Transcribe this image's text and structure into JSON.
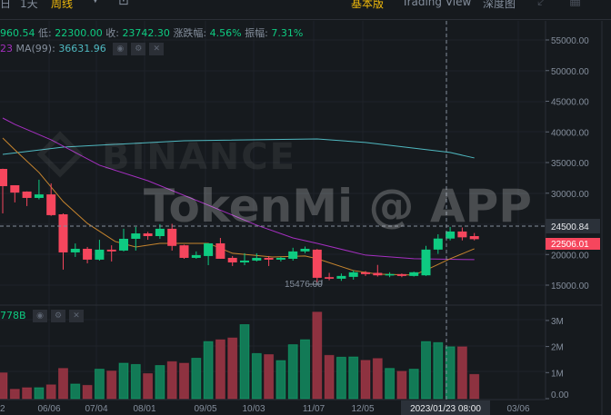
{
  "toolbar": {
    "interval_partial": "日",
    "interval_1d": "1天",
    "interval_week": "周线",
    "dropdown_icon": "caret-down-icon",
    "chart_icon": "chart-type-icon",
    "view_basic": "基本版",
    "view_tradingview": "Trading View",
    "view_depth": "深度图",
    "expand_icon": "expand-icon",
    "layout_icon": "grid-icon"
  },
  "legend": {
    "high_partial": "960.54",
    "low_label": "低:",
    "low": "22300.00",
    "close_label": "收:",
    "close": "23742.30",
    "change_label": "涨跌幅:",
    "change": "4.56%",
    "amp_label": "振幅:",
    "amp": "7.31%",
    "ma25_partial": "23",
    "ma99_label": "MA(99):",
    "ma99": "36631.96",
    "vol_partial": "778B"
  },
  "watermark": {
    "logo": "BINANCE",
    "text": "TokenMi @ APP"
  },
  "price_axis": [
    "55000.00",
    "50000.00",
    "45000.00",
    "40000.00",
    "35000.00",
    "30000.00",
    "20000.00",
    "15000.00"
  ],
  "volume_axis": [
    "3M",
    "2M",
    "1M",
    "0.00"
  ],
  "time_axis": [
    "2",
    "06/06",
    "07/04",
    "08/01",
    "09/05",
    "10/03",
    "11/07",
    "12/05",
    "03/06"
  ],
  "crosshair": {
    "price": "24500.84",
    "time": "2023/01/23 08:00"
  },
  "last_price": "22506.01",
  "min_label": "15476.00",
  "colors": {
    "up": "#0ecb81",
    "down": "#f6465d",
    "ma7": "#c7852e",
    "ma25": "#a52fc0",
    "ma99": "#4fb8c0",
    "accent": "#f0b90b"
  },
  "chart_data": {
    "type": "candlestick",
    "interval": "week",
    "candles": [
      [
        33960,
        34000,
        26700,
        31150
      ],
      [
        31300,
        31300,
        28500,
        30100
      ],
      [
        30270,
        30300,
        27900,
        29230
      ],
      [
        29230,
        32200,
        29000,
        29800
      ],
      [
        29800,
        31600,
        26300,
        26420
      ],
      [
        26560,
        26700,
        17530,
        20340
      ],
      [
        20340,
        21800,
        19600,
        20930
      ],
      [
        20930,
        21230,
        18560,
        19160
      ],
      [
        19160,
        22400,
        19000,
        20790
      ],
      [
        20790,
        21500,
        18860,
        20500
      ],
      [
        20640,
        24200,
        20500,
        22560
      ],
      [
        22560,
        24500,
        20640,
        23440
      ],
      [
        23440,
        23700,
        22400,
        23000
      ],
      [
        23000,
        24940,
        22560,
        24200
      ],
      [
        24200,
        25000,
        20640,
        21400
      ],
      [
        21500,
        21600,
        19300,
        19450
      ],
      [
        19450,
        20500,
        19300,
        19900
      ],
      [
        19750,
        21820,
        18260,
        21820
      ],
      [
        21820,
        22700,
        19300,
        19300
      ],
      [
        19450,
        19750,
        18120,
        18710
      ],
      [
        18710,
        20200,
        18260,
        19010
      ],
      [
        19010,
        20200,
        18860,
        19450
      ],
      [
        19450,
        19750,
        18120,
        19160
      ],
      [
        19160,
        19600,
        18860,
        19450
      ],
      [
        19300,
        21100,
        19000,
        20500
      ],
      [
        20500,
        21300,
        20200,
        20930
      ],
      [
        20790,
        20900,
        15476,
        16200
      ],
      [
        16300,
        17000,
        15800,
        16050
      ],
      [
        16050,
        16900,
        15700,
        16500
      ],
      [
        16350,
        17400,
        15900,
        17100
      ],
      [
        17100,
        17300,
        16500,
        16800
      ],
      [
        17000,
        18300,
        16400,
        16600
      ],
      [
        16600,
        17100,
        16300,
        16800
      ],
      [
        16800,
        16900,
        16300,
        16500
      ],
      [
        16500,
        17200,
        16400,
        17100
      ],
      [
        16600,
        21400,
        16500,
        20800
      ],
      [
        20800,
        23300,
        20100,
        22600
      ],
      [
        22600,
        24500,
        22300,
        23750
      ],
      [
        23750,
        24400,
        22300,
        22800
      ],
      [
        23000,
        23500,
        22300,
        22500
      ]
    ],
    "volume_millions": [
      0.99,
      0.36,
      0.42,
      0.42,
      0.53,
      1.16,
      0.56,
      0.51,
      1.13,
      1.06,
      1.36,
      1.31,
      0.96,
      1.27,
      1.42,
      1.36,
      1.55,
      2.19,
      2.26,
      2.33,
      2.84,
      1.73,
      1.69,
      1.46,
      2.07,
      2.26,
      3.32,
      1.66,
      1.59,
      1.6,
      1.47,
      1.54,
      1.16,
      1.05,
      1.13,
      2.19,
      2.15,
      1.99,
      1.99,
      0.93
    ],
    "volume_up": [
      false,
      false,
      false,
      true,
      false,
      false,
      true,
      false,
      true,
      false,
      true,
      true,
      false,
      true,
      false,
      false,
      true,
      true,
      false,
      false,
      true,
      true,
      false,
      true,
      true,
      true,
      false,
      false,
      true,
      true,
      false,
      false,
      true,
      false,
      true,
      true,
      true,
      true,
      false,
      false
    ],
    "ma7": [
      [
        0,
        39000
      ],
      [
        1,
        37080
      ],
      [
        3,
        33380
      ],
      [
        5,
        28640
      ],
      [
        7,
        25080
      ],
      [
        9.3,
        22120
      ],
      [
        11,
        21230
      ],
      [
        13,
        21820
      ],
      [
        17,
        21820
      ],
      [
        19,
        20200
      ],
      [
        22.3,
        19600
      ],
      [
        25,
        19750
      ],
      [
        26,
        19310
      ],
      [
        29,
        17380
      ],
      [
        31,
        16790
      ],
      [
        34,
        16640
      ],
      [
        35.4,
        17830
      ],
      [
        37,
        19310
      ],
      [
        39,
        20930
      ]
    ],
    "ma25": [
      [
        0,
        42260
      ],
      [
        1,
        41230
      ],
      [
        4,
        38710
      ],
      [
        8,
        34560
      ],
      [
        12,
        32040
      ],
      [
        17,
        28050
      ],
      [
        21,
        24790
      ],
      [
        24,
        22710
      ],
      [
        26,
        21820
      ],
      [
        30,
        19900
      ],
      [
        34,
        19310
      ],
      [
        39,
        19160
      ]
    ],
    "ma99": [
      [
        0,
        36340
      ],
      [
        5,
        37520
      ],
      [
        15,
        38560
      ],
      [
        26,
        38860
      ],
      [
        30,
        38270
      ],
      [
        37,
        36640
      ],
      [
        39,
        35750
      ]
    ],
    "price_ylim": [
      15000,
      55000
    ],
    "volume_ylim": [
      0,
      3
    ],
    "grid": true
  }
}
